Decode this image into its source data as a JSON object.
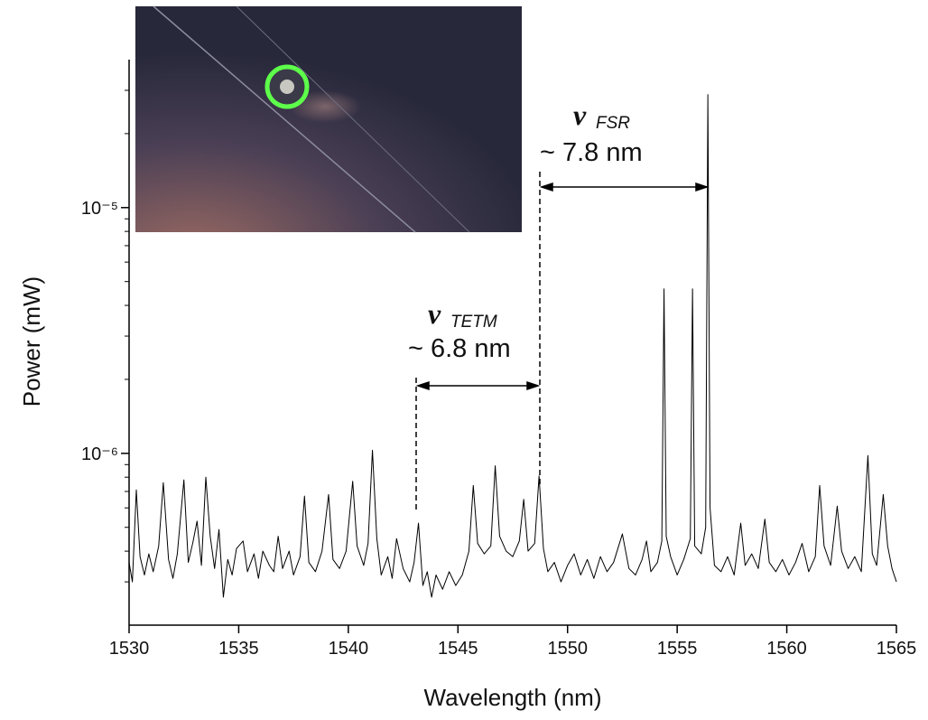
{
  "chart_data": {
    "type": "line",
    "x_label": "Wavelength (nm)",
    "y_label": "Power (mW)",
    "color": "#000000",
    "log_y": true,
    "xlim": [
      1530,
      1565
    ],
    "xticks": [
      1530,
      1535,
      1540,
      1545,
      1550,
      1555,
      1560,
      1565
    ],
    "ylim": [
      2e-07,
      4e-05
    ],
    "yticks": [
      {
        "value": 1e-06,
        "label": "10⁻⁶"
      },
      {
        "value": 1e-05,
        "label": "10⁻⁵"
      }
    ],
    "yminorticks": [
      3e-07,
      4e-07,
      5e-07,
      6e-07,
      7e-07,
      8e-07,
      9e-07,
      2e-06,
      3e-06,
      4e-06,
      5e-06,
      6e-06,
      7e-06,
      8e-06,
      9e-06,
      2e-05,
      3e-05
    ],
    "annotations": [
      {
        "symbol": "ν",
        "subscript": "TETM",
        "text": "~ 6.8 nm"
      },
      {
        "symbol": "ν",
        "subscript": "FSR",
        "text": "~ 7.8 nm"
      }
    ],
    "x": [
      1530.0,
      1530.15,
      1530.33,
      1530.5,
      1530.7,
      1530.9,
      1531.1,
      1531.35,
      1531.56,
      1531.8,
      1532.0,
      1532.2,
      1532.5,
      1532.7,
      1532.9,
      1533.1,
      1533.3,
      1533.5,
      1533.7,
      1533.9,
      1534.1,
      1534.3,
      1534.5,
      1534.7,
      1534.9,
      1535.2,
      1535.4,
      1535.7,
      1535.9,
      1536.1,
      1536.4,
      1536.6,
      1536.8,
      1537.0,
      1537.3,
      1537.5,
      1537.8,
      1538.0,
      1538.2,
      1538.5,
      1538.8,
      1539.1,
      1539.3,
      1539.6,
      1539.9,
      1540.2,
      1540.4,
      1540.7,
      1540.9,
      1541.1,
      1541.3,
      1541.5,
      1541.8,
      1542.0,
      1542.2,
      1542.5,
      1542.8,
      1543.0,
      1543.2,
      1543.4,
      1543.6,
      1543.8,
      1544.0,
      1544.3,
      1544.6,
      1544.9,
      1545.2,
      1545.5,
      1545.7,
      1545.9,
      1546.2,
      1546.5,
      1546.7,
      1546.9,
      1547.2,
      1547.5,
      1547.8,
      1548.0,
      1548.2,
      1548.5,
      1548.7,
      1548.9,
      1549.1,
      1549.4,
      1549.7,
      1550.0,
      1550.3,
      1550.6,
      1550.9,
      1551.2,
      1551.5,
      1551.8,
      1552.1,
      1552.5,
      1552.8,
      1553.1,
      1553.4,
      1553.6,
      1553.8,
      1554.1,
      1554.3,
      1554.4,
      1554.5,
      1554.7,
      1555.0,
      1555.3,
      1555.6,
      1555.7,
      1555.8,
      1556.1,
      1556.3,
      1556.4,
      1556.5,
      1556.7,
      1557.0,
      1557.3,
      1557.6,
      1557.9,
      1558.1,
      1558.4,
      1558.7,
      1559.0,
      1559.2,
      1559.5,
      1559.8,
      1560.1,
      1560.4,
      1560.7,
      1561.0,
      1561.3,
      1561.5,
      1561.7,
      1562.0,
      1562.3,
      1562.5,
      1562.8,
      1563.1,
      1563.4,
      1563.7,
      1563.9,
      1564.1,
      1564.4,
      1564.6,
      1564.8,
      1565.0
    ],
    "values": [
      3.6e-07,
      3e-07,
      7.1e-07,
      3.8e-07,
      3.2e-07,
      3.9e-07,
      3.3e-07,
      4.2e-07,
      7.6e-07,
      3.7e-07,
      3.1e-07,
      3.9e-07,
      7.8e-07,
      3.6e-07,
      4.3e-07,
      5.3e-07,
      3.5e-07,
      8e-07,
      4.6e-07,
      3.4e-07,
      4.9e-07,
      2.6e-07,
      3.7e-07,
      3.2e-07,
      4.1e-07,
      4.4e-07,
      3.3e-07,
      3.9e-07,
      3.1e-07,
      4e-07,
      3.5e-07,
      3.3e-07,
      4.6e-07,
      3.4e-07,
      4e-07,
      3.2e-07,
      3.8e-07,
      6.7e-07,
      3.6e-07,
      3.3e-07,
      4e-07,
      6.8e-07,
      3.7e-07,
      3.4e-07,
      4e-07,
      7.7e-07,
      4.2e-07,
      3.5e-07,
      4.3e-07,
      1.03e-06,
      4.5e-07,
      3.2e-07,
      3.8e-07,
      3.1e-07,
      4.5e-07,
      3.4e-07,
      3e-07,
      3.6e-07,
      5.2e-07,
      2.9e-07,
      3.3e-07,
      2.6e-07,
      3.2e-07,
      2.8e-07,
      3.3e-07,
      2.9e-07,
      3.2e-07,
      4e-07,
      7.4e-07,
      4.3e-07,
      3.9e-07,
      4.2e-07,
      8.9e-07,
      4.6e-07,
      4e-07,
      3.8e-07,
      4.4e-07,
      6.5e-07,
      4e-07,
      4.3e-07,
      8.1e-07,
      4.1e-07,
      3.3e-07,
      3.6e-07,
      3e-07,
      3.5e-07,
      3.9e-07,
      3.2e-07,
      3.7e-07,
      3.1e-07,
      3.8e-07,
      3.3e-07,
      3.6e-07,
      4.7e-07,
      3.4e-07,
      3.2e-07,
      3.7e-07,
      4.4e-07,
      3.3e-07,
      3.6e-07,
      4.4e-07,
      4.67e-06,
      4.6e-07,
      3.8e-07,
      3.2e-07,
      3.7e-07,
      4.5e-07,
      4.67e-06,
      4.2e-07,
      3.9e-07,
      5e-07,
      2.88e-05,
      6e-07,
      3.5e-07,
      3.3e-07,
      3.8e-07,
      3.2e-07,
      5.2e-07,
      3.5e-07,
      3.9e-07,
      3.4e-07,
      5.4e-07,
      3.6e-07,
      3.3e-07,
      3.7e-07,
      3.2e-07,
      3.6e-07,
      4.3e-07,
      3.3e-07,
      3.8e-07,
      7.4e-07,
      4.2e-07,
      3.5e-07,
      6.1e-07,
      4e-07,
      3.4e-07,
      3.8e-07,
      3.3e-07,
      9.8e-07,
      3.9e-07,
      3.5e-07,
      6.8e-07,
      4.2e-07,
      3.4e-07,
      3e-07
    ]
  }
}
